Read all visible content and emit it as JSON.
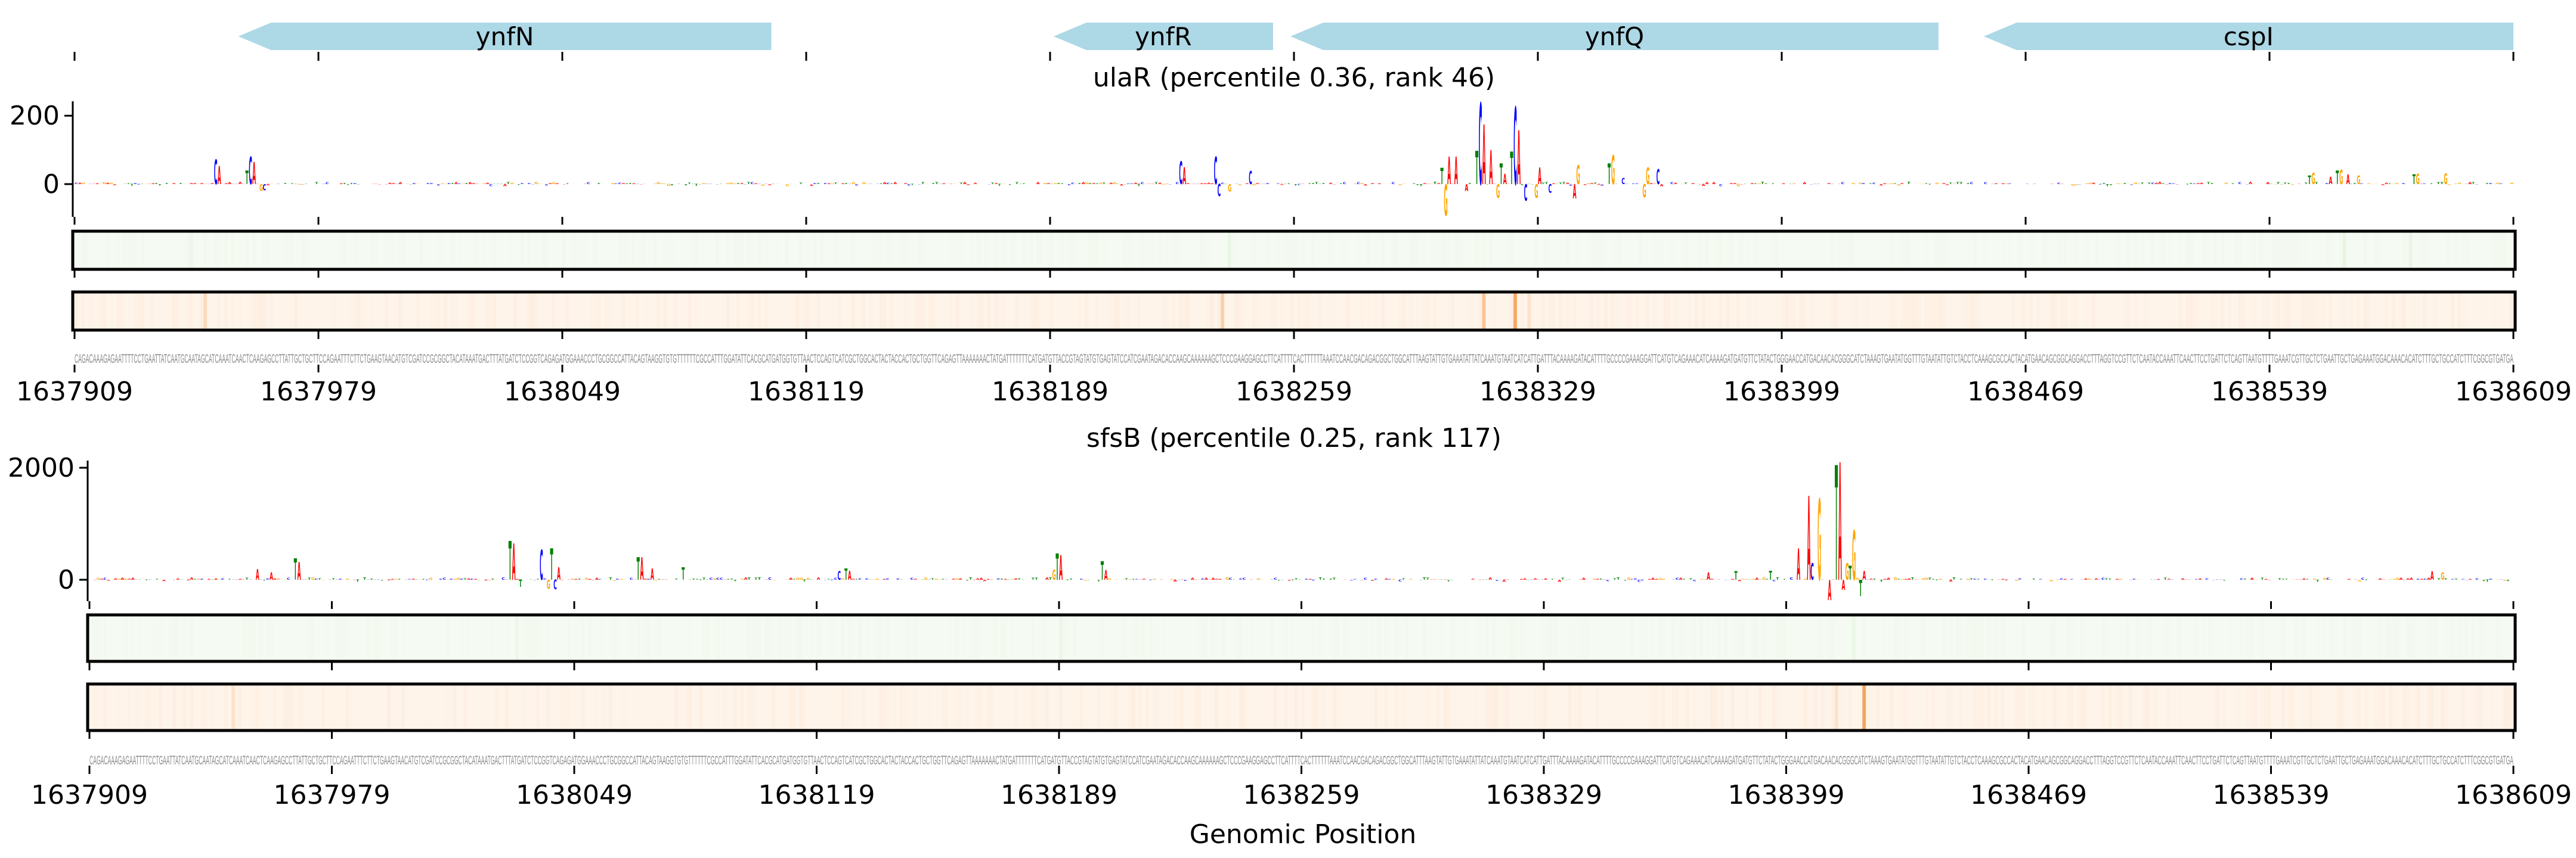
{
  "xlabel": "Genomic Position",
  "sequence": "CAGACAAAGAGAATTTTCCTGAATTATCAATGCAATAGCATCAAATCAACTCAAGAGCCTTATTGCTGCTTCCAGAATTTCTTCTGAAGTAACATGTCGATCCGCGGCTACATAAATGACTTTATGATCTCCGGTCAGAGATGGAAACCCTGCGGCCATTACAGTAAGGTGTGTTTTTTCGCCATTTGGATATTCACGCATGATGGTGTTAACTCCAGTCATCGCTGGCACTACTACCACTGCTGGTTCAGAGTTAAAAAAACTATGATTTTTTTCATGATGTTACCGTAGTATGTGAGTATCCATCGAATAGACACCAAGCAAAAAAGCTCCCGAAGGAGCCTTCATTTTCACTTTTTTAAATCCAACGACAGACGGCTGGCATTTAAGTATTGTGAAATATTATCAAATGTAATCATCATTGATTTACAAAAGATACATTTTGCCCCGAAAGGATTCATGTCAGAAACATCAAAAGATGATGTTCTATACTGGGAACCATGACAACACGGGCATCTAAAGTGAATATGGTTTGTAATATTGTCTACCTCAAAGCGCCACTACATGAACAGCGGCAGGACCTTTAGGTCCGTTCTCAATACCAAATTCAACTTCCTGATTCTCAGTTAATGTTTTGAAATCGTTGCTCTGAATTGCTGAGAAATGGACAAACACATCTTTGCTGCCATCTTTCGGCGTGATGA",
  "xrange": [
    1637909,
    1638609
  ],
  "xticks": [
    "1637909",
    "1637979",
    "1638049",
    "1638119",
    "1638189",
    "1638259",
    "1638329",
    "1638399",
    "1638469",
    "1638539",
    "1638609"
  ],
  "genes": [
    {
      "name": "ynfN",
      "start": 1637956,
      "end": 1638109,
      "strand": "-"
    },
    {
      "name": "ynfR",
      "start": 1638190,
      "end": 1638253,
      "strand": "-"
    },
    {
      "name": "ynfQ",
      "start": 1638258,
      "end": 1638444,
      "strand": "-"
    },
    {
      "name": "cspI",
      "start": 1638457,
      "end": 1638609,
      "strand": "-"
    }
  ],
  "colors": {
    "gene": "#add8e6",
    "A": "#ff0000",
    "C": "#0000ff",
    "G": "#ffa500",
    "T": "#008000",
    "green_track": "#f5faf2",
    "green_stripe": "#cfe9c6",
    "orange_track": "#fef4ea",
    "orange_stripe": "#f39a4f"
  },
  "chart_data": [
    {
      "type": "sequence-logo",
      "title": "ulaR (percentile 0.36, rank 46)",
      "ylim": [
        -96,
        242
      ],
      "yticks": [
        {
          "value": 0,
          "label": "0"
        },
        {
          "value": 200,
          "label": "200"
        }
      ],
      "noise_amplitude": 7,
      "peaks": [
        [
          1637949,
          72,
          "C"
        ],
        [
          1637950,
          53,
          "A"
        ],
        [
          1637958,
          40,
          "T"
        ],
        [
          1637959,
          80,
          "C"
        ],
        [
          1637960,
          65,
          "A"
        ],
        [
          1637962,
          -20,
          "G"
        ],
        [
          1637963,
          -18,
          "C"
        ],
        [
          1638226,
          67,
          "C"
        ],
        [
          1638227,
          50,
          "A"
        ],
        [
          1638236,
          80,
          "C"
        ],
        [
          1638237,
          -36,
          "C"
        ],
        [
          1638240,
          -22,
          "G"
        ],
        [
          1638246,
          39,
          "C"
        ],
        [
          1638301,
          48,
          "T"
        ],
        [
          1638302,
          -92,
          "G"
        ],
        [
          1638303,
          80,
          "A"
        ],
        [
          1638305,
          80,
          "A"
        ],
        [
          1638308,
          -20,
          "A"
        ],
        [
          1638311,
          97,
          "T"
        ],
        [
          1638312,
          238,
          "C"
        ],
        [
          1638313,
          175,
          "A"
        ],
        [
          1638315,
          100,
          "A"
        ],
        [
          1638317,
          -40,
          "G"
        ],
        [
          1638318,
          60,
          "T"
        ],
        [
          1638319,
          30,
          "A"
        ],
        [
          1638321,
          95,
          "T"
        ],
        [
          1638322,
          226,
          "C"
        ],
        [
          1638323,
          158,
          "A"
        ],
        [
          1638325,
          -49,
          "C"
        ],
        [
          1638328,
          -40,
          "G"
        ],
        [
          1638329,
          49,
          "A"
        ],
        [
          1638332,
          -25,
          "C"
        ],
        [
          1638339,
          -42,
          "A"
        ],
        [
          1638340,
          56,
          "G"
        ],
        [
          1638349,
          60,
          "T"
        ],
        [
          1638350,
          85,
          "G"
        ],
        [
          1638353,
          18,
          "C"
        ],
        [
          1638359,
          -38,
          "G"
        ],
        [
          1638360,
          49,
          "G"
        ],
        [
          1638363,
          44,
          "C"
        ],
        [
          1638550,
          25,
          "T"
        ],
        [
          1638551,
          33,
          "G"
        ],
        [
          1638556,
          22,
          "A"
        ],
        [
          1638558,
          40,
          "T"
        ],
        [
          1638559,
          42,
          "G"
        ],
        [
          1638561,
          28,
          "A"
        ],
        [
          1638564,
          25,
          "G"
        ],
        [
          1638580,
          28,
          "T"
        ],
        [
          1638581,
          30,
          "G"
        ],
        [
          1638589,
          32,
          "G"
        ]
      ],
      "heatmap_green": [
        [
          1637942,
          0.2
        ],
        [
          1638240,
          0.25
        ],
        [
          1638560,
          0.3
        ],
        [
          1638579,
          0.25
        ]
      ],
      "heatmap_orange": [
        [
          1637946,
          0.25
        ],
        [
          1638238,
          0.4
        ],
        [
          1638313,
          0.5
        ],
        [
          1638322,
          0.85
        ],
        [
          1638326,
          0.2
        ]
      ]
    },
    {
      "type": "sequence-logo",
      "title": "sfsB (percentile 0.25, rank 117)",
      "ylim": [
        -383,
        2128
      ],
      "yticks": [
        {
          "value": 0,
          "label": "0"
        },
        {
          "value": 2000,
          "label": "2000"
        }
      ],
      "noise_amplitude": 45,
      "peaks": [
        [
          1637957,
          190,
          "A"
        ],
        [
          1637961,
          130,
          "A"
        ],
        [
          1637968,
          380,
          "T"
        ],
        [
          1637969,
          320,
          "A"
        ],
        [
          1638030,
          690,
          "T"
        ],
        [
          1638031,
          650,
          "A"
        ],
        [
          1638033,
          -130,
          "T"
        ],
        [
          1638039,
          540,
          "C"
        ],
        [
          1638041,
          -160,
          "G"
        ],
        [
          1638042,
          560,
          "T"
        ],
        [
          1638043,
          -170,
          "C"
        ],
        [
          1638044,
          220,
          "A"
        ],
        [
          1638067,
          400,
          "T"
        ],
        [
          1638068,
          400,
          "A"
        ],
        [
          1638071,
          200,
          "A"
        ],
        [
          1638080,
          220,
          "T"
        ],
        [
          1638125,
          150,
          "C"
        ],
        [
          1638127,
          200,
          "T"
        ],
        [
          1638128,
          160,
          "A"
        ],
        [
          1638187,
          180,
          "G"
        ],
        [
          1638188,
          470,
          "T"
        ],
        [
          1638189,
          440,
          "A"
        ],
        [
          1638201,
          330,
          "T"
        ],
        [
          1638202,
          170,
          "A"
        ],
        [
          1638376,
          130,
          "A"
        ],
        [
          1638384,
          150,
          "T"
        ],
        [
          1638394,
          160,
          "T"
        ],
        [
          1638402,
          560,
          "A"
        ],
        [
          1638405,
          1500,
          "A"
        ],
        [
          1638406,
          300,
          "C"
        ],
        [
          1638408,
          1450,
          "G"
        ],
        [
          1638411,
          -360,
          "A"
        ],
        [
          1638413,
          2050,
          "T"
        ],
        [
          1638414,
          2100,
          "A"
        ],
        [
          1638415,
          -180,
          "A"
        ],
        [
          1638416,
          300,
          "G"
        ],
        [
          1638417,
          250,
          "T"
        ],
        [
          1638418,
          880,
          "G"
        ],
        [
          1638420,
          -290,
          "T"
        ],
        [
          1638421,
          160,
          "A"
        ],
        [
          1638585,
          150,
          "A"
        ],
        [
          1638588,
          130,
          "G"
        ]
      ],
      "heatmap_green": [
        [
          1638032,
          0.2
        ],
        [
          1638189,
          0.2
        ],
        [
          1638418,
          0.2
        ]
      ],
      "heatmap_orange": [
        [
          1637950,
          0.2
        ],
        [
          1638421,
          0.9
        ],
        [
          1638413,
          0.2
        ]
      ]
    }
  ]
}
